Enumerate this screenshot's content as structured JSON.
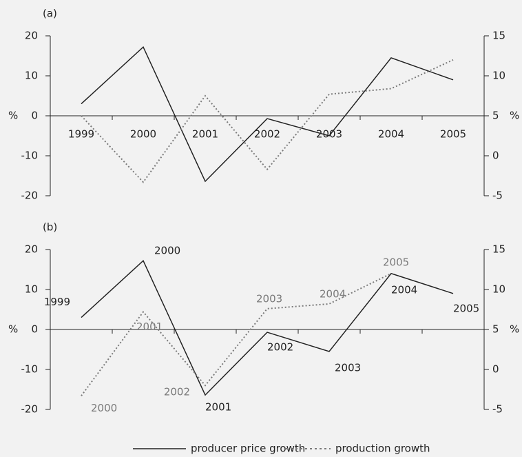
{
  "chart_data": [
    {
      "type": "line",
      "title": "(a)",
      "ylabel": "%",
      "y2label": "%",
      "categories": [
        "1999",
        "2000",
        "2001",
        "2002",
        "2003",
        "2004",
        "2005"
      ],
      "series": [
        {
          "name": "producer price growth",
          "color": "#222222",
          "dash": "solid",
          "values": [
            3,
            17.2,
            -16.4,
            -0.7,
            -5,
            14.5,
            9
          ]
        },
        {
          "name": "production growth",
          "color": "#7a7a7a",
          "dash": "dotted",
          "axis": "y2",
          "values": [
            5,
            -3.3,
            7.5,
            -1.7,
            7.7,
            8.4,
            12
          ]
        }
      ],
      "ylim": [
        -20,
        20
      ],
      "yticks": [
        -20,
        -10,
        0,
        10,
        20
      ],
      "y2lim": [
        -5,
        15
      ],
      "y2ticks": [
        -5,
        0,
        5,
        10,
        15
      ]
    },
    {
      "type": "line",
      "title": "(b)",
      "ylabel": "%",
      "y2label": "%",
      "series": [
        {
          "color": "#222222",
          "dash": "solid",
          "values": [
            3,
            17.2,
            -16.4,
            -0.7,
            -5.5,
            14,
            9
          ],
          "value_labels": [
            "1999",
            "2000",
            "2001",
            "2002",
            "2003",
            "2004",
            "2005"
          ]
        },
        {
          "color": "#7a7a7a",
          "dash": "dotted",
          "axis": "y2",
          "values": [
            -3.3,
            7.2,
            -2,
            7.6,
            8.2,
            12,
            null
          ],
          "value_labels": [
            "2000",
            "2001",
            "2002",
            "2003",
            "2004",
            "2005",
            null
          ]
        }
      ],
      "ylim": [
        -20,
        20
      ],
      "yticks": [
        -20,
        -10,
        0,
        10,
        20
      ],
      "y2lim": [
        -5,
        15
      ],
      "y2ticks": [
        -5,
        0,
        5,
        10,
        15
      ]
    }
  ]
}
